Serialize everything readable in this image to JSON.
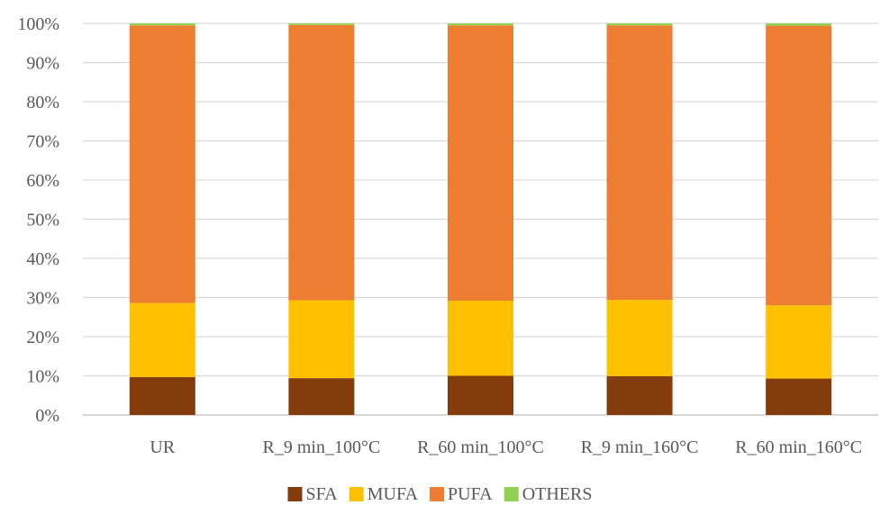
{
  "chart_data": {
    "type": "bar",
    "stacked": true,
    "normalized": true,
    "categories": [
      "UR",
      "R_9 min_100°C",
      "R_60 min_100°C",
      "R_9 min_160°C",
      "R_60 min_160°C"
    ],
    "series": [
      {
        "name": "SFA",
        "color": "#843c0c",
        "values": [
          9.7,
          9.4,
          10.0,
          9.9,
          9.3
        ]
      },
      {
        "name": "MUFA",
        "color": "#ffc000",
        "values": [
          18.9,
          19.9,
          19.2,
          19.5,
          18.7
        ]
      },
      {
        "name": "PUFA",
        "color": "#ed7d31",
        "values": [
          70.9,
          70.3,
          70.3,
          70.1,
          71.4
        ]
      },
      {
        "name": "OTHERS",
        "color": "#92d050",
        "values": [
          0.5,
          0.4,
          0.5,
          0.5,
          0.6
        ]
      }
    ],
    "y_ticks": [
      "0%",
      "10%",
      "20%",
      "30%",
      "40%",
      "50%",
      "60%",
      "70%",
      "80%",
      "90%",
      "100%"
    ],
    "ylim": [
      0,
      100
    ],
    "grid": true,
    "legend_position": "bottom",
    "title": "",
    "xlabel": "",
    "ylabel": ""
  }
}
